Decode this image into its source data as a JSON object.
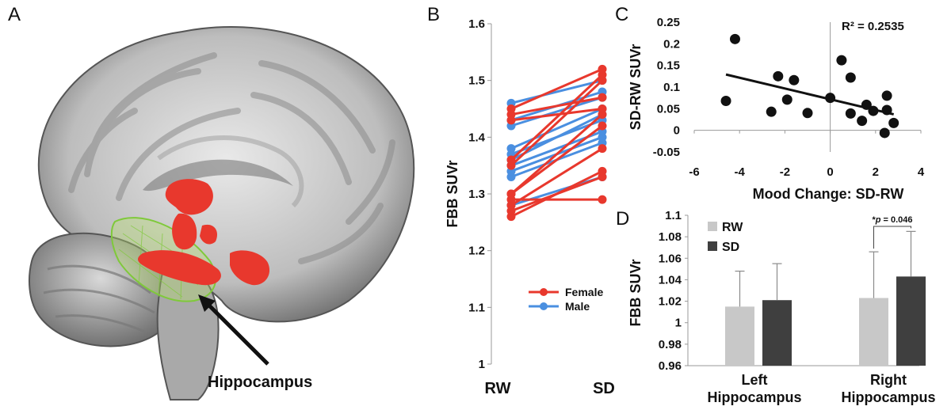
{
  "panels": {
    "a": {
      "letter": "A",
      "structure_label": "Hippocampus"
    },
    "b": {
      "letter": "B"
    },
    "c": {
      "letter": "C"
    },
    "d": {
      "letter": "D"
    }
  },
  "colors": {
    "female": "#e8382d",
    "male": "#4a8fe0",
    "rw_bar": "#c8c8c8",
    "sd_bar": "#3f3f3f",
    "point": "#111111"
  },
  "chart_data": [
    {
      "id": "B",
      "type": "line",
      "ylabel": "FBB SUVr",
      "categories": [
        "RW",
        "SD"
      ],
      "ylim": [
        1,
        1.6
      ],
      "yticks": [
        "1",
        "1.1",
        "1.2",
        "1.3",
        "1.4",
        "1.5",
        "1.6"
      ],
      "series": [
        {
          "name": "Female",
          "color_key": "female",
          "pairs": [
            [
              1.26,
              1.34
            ],
            [
              1.27,
              1.33
            ],
            [
              1.28,
              1.38
            ],
            [
              1.29,
              1.29
            ],
            [
              1.3,
              1.42
            ],
            [
              1.3,
              1.44
            ],
            [
              1.35,
              1.5
            ],
            [
              1.36,
              1.51
            ],
            [
              1.43,
              1.45
            ],
            [
              1.44,
              1.47
            ],
            [
              1.45,
              1.52
            ]
          ]
        },
        {
          "name": "Male",
          "color_key": "male",
          "pairs": [
            [
              1.28,
              1.33
            ],
            [
              1.33,
              1.39
            ],
            [
              1.34,
              1.4
            ],
            [
              1.35,
              1.41
            ],
            [
              1.36,
              1.44
            ],
            [
              1.37,
              1.43
            ],
            [
              1.38,
              1.45
            ],
            [
              1.42,
              1.47
            ],
            [
              1.43,
              1.48
            ],
            [
              1.46,
              1.5
            ]
          ]
        }
      ]
    },
    {
      "id": "C",
      "type": "scatter",
      "xlabel": "Mood Change: SD-RW",
      "ylabel": "SD-RW SUVr",
      "annotation": "R² = 0.2535",
      "xlim": [
        -6,
        4
      ],
      "ylim": [
        -0.05,
        0.25
      ],
      "xticks": [
        "-6",
        "-4",
        "-2",
        "0",
        "2",
        "4"
      ],
      "yticks": [
        "-0.05",
        "0",
        "0.05",
        "0.1",
        "0.15",
        "0.2",
        "0.25"
      ],
      "points": [
        [
          -4.6,
          0.068
        ],
        [
          -4.2,
          0.211
        ],
        [
          -2.6,
          0.043
        ],
        [
          -2.3,
          0.125
        ],
        [
          -1.9,
          0.071
        ],
        [
          -1.6,
          0.116
        ],
        [
          -1.0,
          0.04
        ],
        [
          0.0,
          0.075
        ],
        [
          0.5,
          0.162
        ],
        [
          0.9,
          0.122
        ],
        [
          0.9,
          0.039
        ],
        [
          1.4,
          0.022
        ],
        [
          1.6,
          0.059
        ],
        [
          1.9,
          0.045
        ],
        [
          2.4,
          -0.006
        ],
        [
          2.5,
          0.08
        ],
        [
          2.5,
          0.047
        ],
        [
          2.8,
          0.017
        ]
      ],
      "trendline": {
        "x": [
          -4.6,
          2.8
        ],
        "y": [
          0.129,
          0.037
        ]
      }
    },
    {
      "id": "D",
      "type": "bar",
      "ylabel": "FBB SUVr",
      "ylim": [
        0.96,
        1.1
      ],
      "yticks": [
        "0.96",
        "0.98",
        "1",
        "1.02",
        "1.04",
        "1.06",
        "1.08",
        "1.1"
      ],
      "categories": [
        {
          "line1": "Left",
          "line2": "Hippocampus"
        },
        {
          "line1": "Right",
          "line2": "Hippocampus"
        }
      ],
      "series": [
        {
          "name": "RW",
          "color_key": "rw_bar",
          "values": [
            1.015,
            1.023
          ],
          "errors": [
            0.033,
            0.043
          ]
        },
        {
          "name": "SD",
          "color_key": "sd_bar",
          "values": [
            1.021,
            1.043
          ],
          "errors": [
            0.034,
            0.042
          ]
        }
      ],
      "significance": {
        "prefix": "*",
        "italic": "p",
        "rest": " = 0.046"
      }
    }
  ]
}
